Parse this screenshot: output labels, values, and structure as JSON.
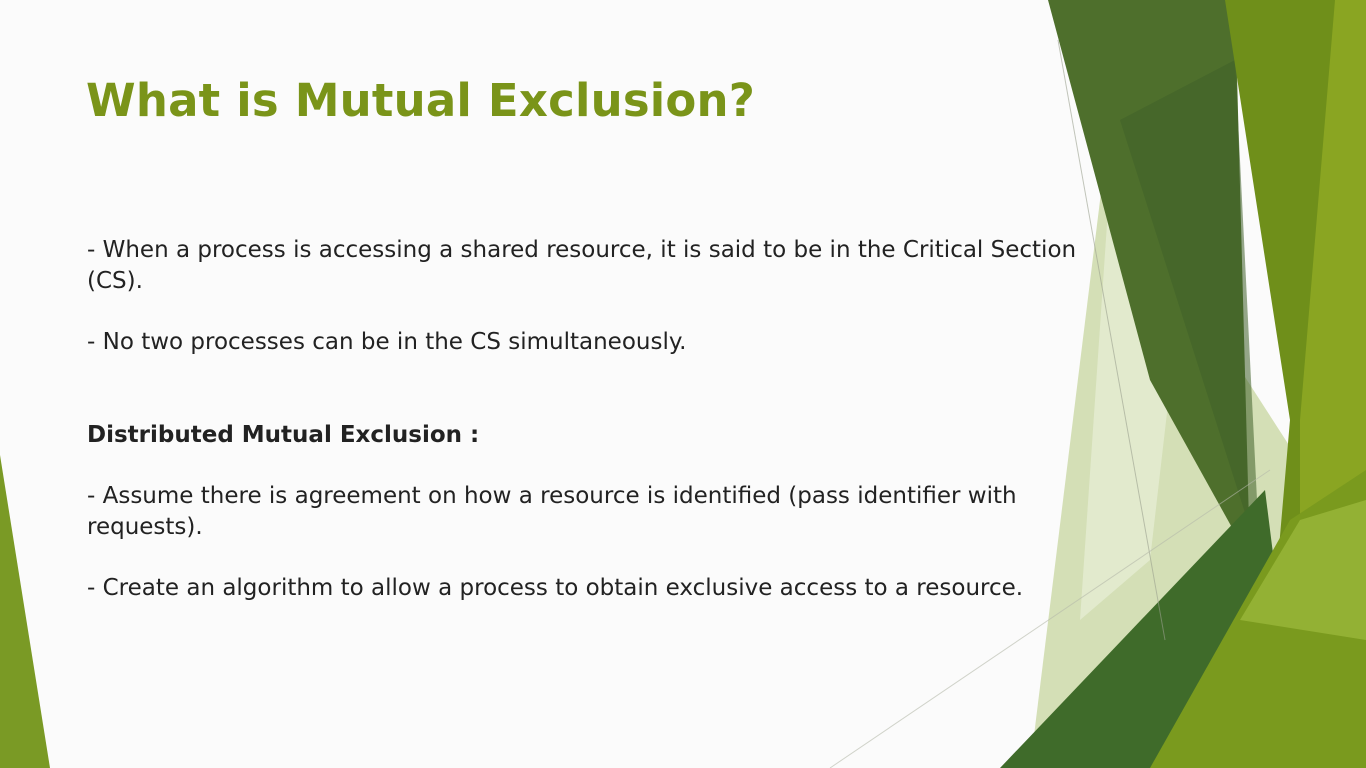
{
  "slide": {
    "title": "What is Mutual Exclusion?",
    "paragraphs": {
      "cs_definition": "- When a process is accessing a shared resource, it is said to be in the Critical Section (CS).",
      "no_two_processes": "- No two processes can be in the CS simultaneously.",
      "section_heading": "Distributed Mutual Exclusion :",
      "assume_agreement": "- Assume there is agreement on how a resource is identified (pass identifier with requests).",
      "create_algorithm": "- Create an algorithm to allow a process to obtain exclusive access to a resource."
    }
  },
  "theme": {
    "title_color": "#7a9419",
    "text_color": "#222222",
    "accent_dark": "#4a6b2a",
    "accent_mid": "#6f9a1a",
    "accent_light": "#c8d9a2"
  }
}
